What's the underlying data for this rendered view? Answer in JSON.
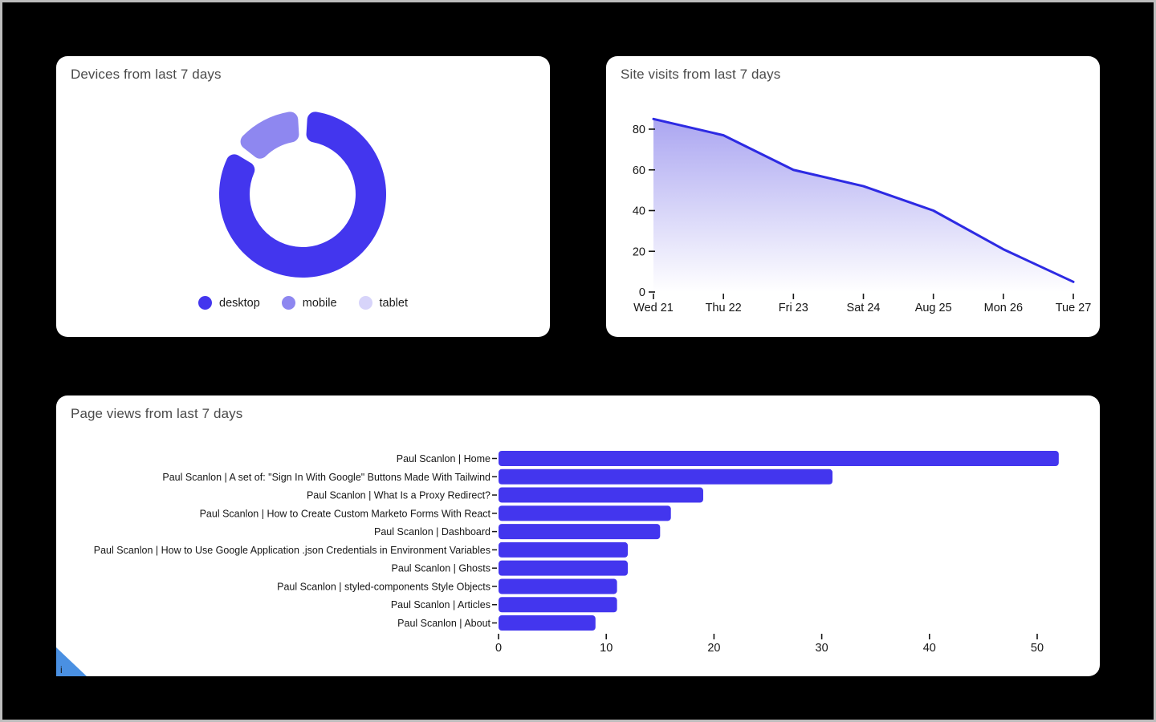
{
  "theme": {
    "page_background": "#000000",
    "page_border": "#bdbdbd",
    "card_background": "#ffffff",
    "title_color": "#4b4b4b",
    "axis_text_color": "#161616",
    "accent_blue": "#4336ee"
  },
  "chart_data": [
    {
      "type": "pie",
      "title": "Devices from last 7 days",
      "donut": true,
      "legend_position": "bottom",
      "segments": [
        {
          "label": "desktop",
          "percent": 86,
          "color": "#4336ee"
        },
        {
          "label": "mobile",
          "percent": 14,
          "color": "#8e87f0"
        },
        {
          "label": "tablet",
          "percent": 0,
          "color": "#d7d4fa"
        }
      ]
    },
    {
      "type": "area",
      "title": "Site visits from last 7 days",
      "x": [
        "Wed 21",
        "Thu 22",
        "Fri 23",
        "Sat 24",
        "Aug 25",
        "Mon 26",
        "Tue 27"
      ],
      "values": [
        85,
        77,
        60,
        52,
        40,
        21,
        5
      ],
      "yticks": [
        0,
        20,
        40,
        60,
        80
      ],
      "ylim": [
        0,
        88
      ],
      "grid": false,
      "legend_position": "none",
      "line_color": "#2d2ae3",
      "fill_top": "#aba6f1",
      "fill_bottom": "#ffffff"
    },
    {
      "type": "bar",
      "title": "Page views from last 7 days",
      "orientation": "horizontal",
      "categories": [
        "Paul Scanlon | Home",
        "Paul Scanlon | A set of: \"Sign In With Google\" Buttons Made With Tailwind",
        "Paul Scanlon | What Is a Proxy Redirect?",
        "Paul Scanlon | How to Create Custom Marketo Forms With React",
        "Paul Scanlon | Dashboard",
        "Paul Scanlon | How to Use Google Application .json Credentials in Environment Variables",
        "Paul Scanlon | Ghosts",
        "Paul Scanlon | styled-components Style Objects",
        "Paul Scanlon | Articles",
        "Paul Scanlon | About"
      ],
      "values": [
        52,
        31,
        19,
        16,
        15,
        12,
        12,
        11,
        11,
        9
      ],
      "xticks": [
        0,
        10,
        20,
        30,
        40,
        50
      ],
      "xlim": [
        0,
        54
      ],
      "grid": false,
      "bar_color": "#4336ee"
    }
  ],
  "info_badge": {
    "label": "i",
    "color": "#4a90e2"
  }
}
